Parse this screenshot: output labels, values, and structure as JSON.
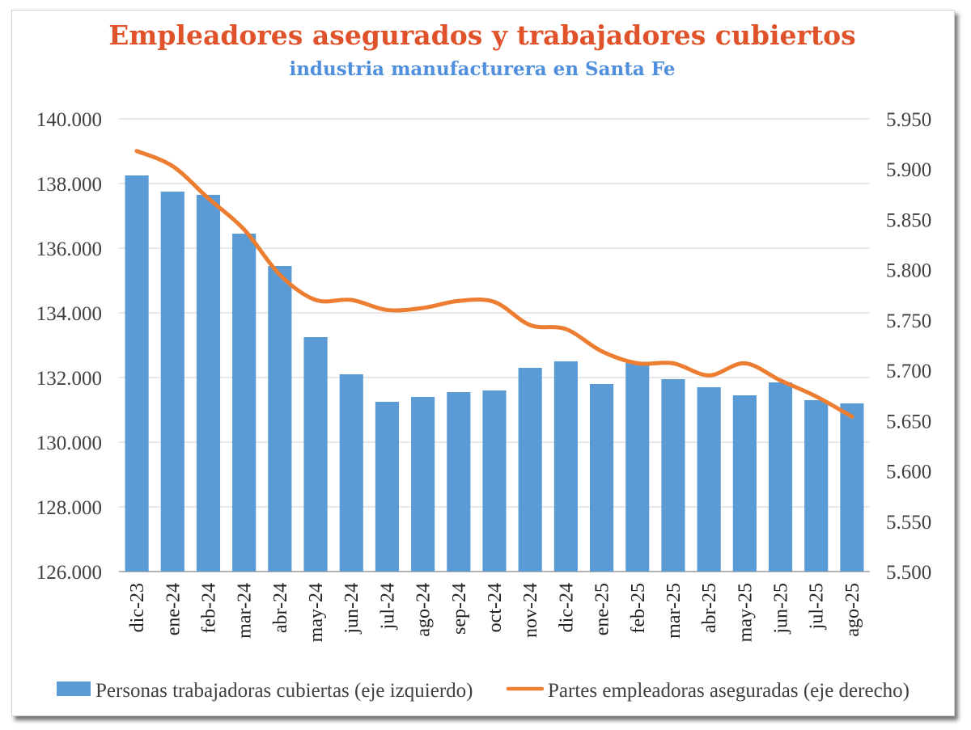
{
  "chart_data": {
    "type": "bar+line",
    "title": "Empleadores asegurados y trabajadores cubiertos",
    "subtitle": "industria manufacturera en Santa Fe",
    "categories": [
      "dic-23",
      "ene-24",
      "feb-24",
      "mar-24",
      "abr-24",
      "may-24",
      "jun-24",
      "jul-24",
      "ago-24",
      "sep-24",
      "oct-24",
      "nov-24",
      "dic-24",
      "ene-25",
      "feb-25",
      "mar-25",
      "abr-25",
      "may-25",
      "jun-25",
      "jul-25",
      "ago-25"
    ],
    "left_axis": {
      "ylim": [
        126000,
        140000
      ],
      "ticks": [
        126000,
        128000,
        130000,
        132000,
        134000,
        136000,
        138000,
        140000
      ],
      "tick_labels": [
        "126.000",
        "128.000",
        "130.000",
        "132.000",
        "134.000",
        "136.000",
        "138.000",
        "140.000"
      ]
    },
    "right_axis": {
      "ylim": [
        5500,
        5950
      ],
      "ticks": [
        5500,
        5550,
        5600,
        5650,
        5700,
        5750,
        5800,
        5850,
        5900,
        5950
      ],
      "tick_labels": [
        "5.500",
        "5.550",
        "5.600",
        "5.650",
        "5.700",
        "5.750",
        "5.800",
        "5.850",
        "5.900",
        "5.950"
      ]
    },
    "series": [
      {
        "name": "Personas trabajadoras cubiertas (eje izquierdo)",
        "type": "bar",
        "axis": "left",
        "color": "#5b9bd5",
        "values": [
          138250,
          137750,
          137650,
          136450,
          135450,
          133250,
          132100,
          131250,
          131400,
          131550,
          131600,
          132300,
          132500,
          131800,
          132450,
          131950,
          131700,
          131450,
          131850,
          131300,
          131200
        ]
      },
      {
        "name": "Partes empleadoras aseguradas (eje derecho)",
        "type": "line",
        "axis": "right",
        "color": "#ed7d31",
        "values": [
          5918,
          5903,
          5871,
          5840,
          5795,
          5770,
          5770,
          5760,
          5762,
          5769,
          5768,
          5745,
          5741,
          5719,
          5707,
          5707,
          5695,
          5707,
          5690,
          5674,
          5654
        ]
      }
    ],
    "grid": true,
    "legend_position": "bottom"
  }
}
